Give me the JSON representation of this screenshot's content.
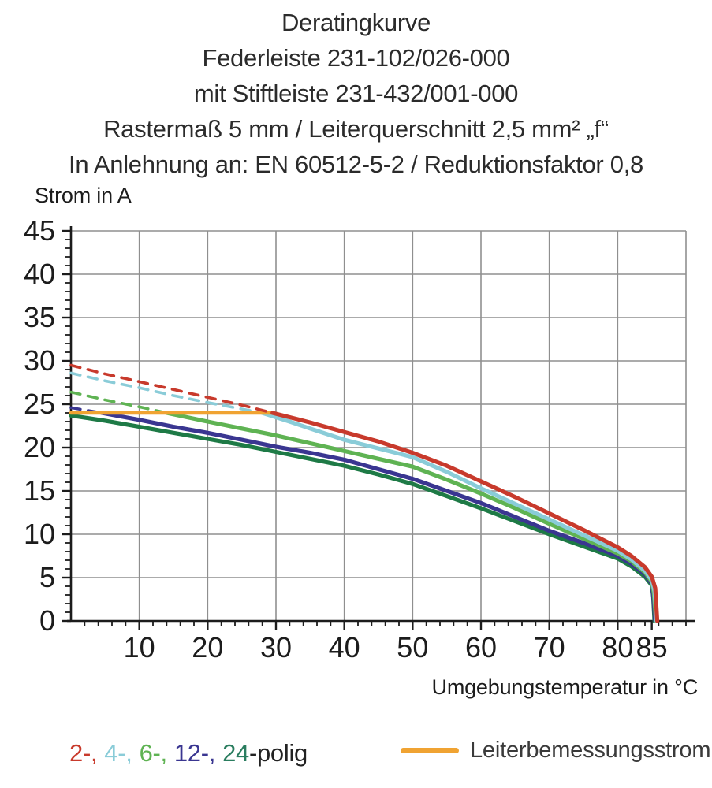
{
  "title": {
    "lines": [
      "Deratingkurve",
      "Federleiste 231-102/026-000",
      "mit Stiftleiste 231-432/001-000",
      "Rastermaß 5 mm / Leiterquerschnitt 2,5 mm² „f“",
      "In Anlehnung an: EN 60512-5-2 / Reduktionsfaktor 0,8"
    ]
  },
  "chart_data": {
    "type": "line",
    "title": "Deratingkurve",
    "xlabel": "Umgebungstemperatur in °C",
    "ylabel": "Strom in A",
    "xlim": [
      0,
      90
    ],
    "ylim": [
      0,
      45
    ],
    "x_major_ticks": [
      10,
      20,
      30,
      40,
      50,
      60,
      70,
      80,
      85
    ],
    "x_minor_tick_step": 2,
    "y_major_ticks": [
      0,
      5,
      10,
      15,
      20,
      25,
      30,
      35,
      40,
      45
    ],
    "y_minor_tick_step": 1,
    "x_gridlines": [
      10,
      20,
      30,
      40,
      50,
      60,
      70,
      80,
      90
    ],
    "y_gridlines": [
      5,
      10,
      15,
      20,
      25,
      30,
      35,
      40,
      45
    ],
    "grid": true,
    "grid_color": "#8f8f8f",
    "axis_color": "#1c1c1c",
    "legend_position": "bottom",
    "dashed_meaning": "current above rated conductor current (dashed portion of pole curves)",
    "series": [
      {
        "name": "24-polig",
        "role": "pole",
        "color": "#1e7a46",
        "dash_until_T": null,
        "points": [
          [
            0,
            23.7
          ],
          [
            5,
            23.1
          ],
          [
            10,
            22.4
          ],
          [
            15,
            21.7
          ],
          [
            20,
            21.0
          ],
          [
            25,
            20.3
          ],
          [
            30,
            19.5
          ],
          [
            35,
            18.7
          ],
          [
            40,
            17.9
          ],
          [
            45,
            16.9
          ],
          [
            50,
            15.8
          ],
          [
            55,
            14.4
          ],
          [
            60,
            13.0
          ],
          [
            65,
            11.5
          ],
          [
            70,
            10.0
          ],
          [
            75,
            8.6
          ],
          [
            80,
            7.2
          ],
          [
            82,
            6.3
          ],
          [
            84,
            5.1
          ],
          [
            85,
            4.1
          ],
          [
            85.2,
            2.8
          ],
          [
            85.4,
            0
          ]
        ]
      },
      {
        "name": "12-polig",
        "role": "pole",
        "color": "#3a3691",
        "dash_until_T": 4.5,
        "points": [
          [
            0,
            24.6
          ],
          [
            4.5,
            24.0
          ],
          [
            10,
            23.2
          ],
          [
            15,
            22.4
          ],
          [
            20,
            21.7
          ],
          [
            25,
            20.9
          ],
          [
            30,
            20.1
          ],
          [
            35,
            19.4
          ],
          [
            40,
            18.6
          ],
          [
            45,
            17.5
          ],
          [
            50,
            16.4
          ],
          [
            55,
            15.0
          ],
          [
            60,
            13.6
          ],
          [
            65,
            12.0
          ],
          [
            70,
            10.4
          ],
          [
            75,
            9.0
          ],
          [
            80,
            7.5
          ],
          [
            82,
            6.6
          ],
          [
            84,
            5.4
          ],
          [
            85,
            4.3
          ],
          [
            85.2,
            3.0
          ],
          [
            85.5,
            0
          ]
        ]
      },
      {
        "name": "6-polig",
        "role": "pole",
        "color": "#5fb353",
        "dash_until_T": 14,
        "points": [
          [
            0,
            26.4
          ],
          [
            5,
            25.5
          ],
          [
            10,
            24.7
          ],
          [
            14,
            24.0
          ],
          [
            20,
            23.0
          ],
          [
            25,
            22.2
          ],
          [
            30,
            21.4
          ],
          [
            35,
            20.5
          ],
          [
            40,
            19.6
          ],
          [
            45,
            18.7
          ],
          [
            50,
            17.8
          ],
          [
            55,
            16.3
          ],
          [
            60,
            14.7
          ],
          [
            65,
            13.0
          ],
          [
            70,
            11.2
          ],
          [
            75,
            9.5
          ],
          [
            80,
            7.8
          ],
          [
            82,
            6.9
          ],
          [
            84,
            5.6
          ],
          [
            85,
            4.5
          ],
          [
            85.3,
            3.2
          ],
          [
            85.6,
            0
          ]
        ]
      },
      {
        "name": "4-polig",
        "role": "pole",
        "color": "#8accd8",
        "dash_until_T": 28,
        "points": [
          [
            0,
            28.6
          ],
          [
            5,
            27.7
          ],
          [
            10,
            26.9
          ],
          [
            15,
            26.0
          ],
          [
            20,
            25.2
          ],
          [
            24,
            24.6
          ],
          [
            28,
            24.0
          ],
          [
            32,
            23.0
          ],
          [
            35,
            22.2
          ],
          [
            40,
            20.9
          ],
          [
            45,
            19.9
          ],
          [
            50,
            18.9
          ],
          [
            55,
            17.2
          ],
          [
            60,
            15.3
          ],
          [
            65,
            13.5
          ],
          [
            70,
            11.7
          ],
          [
            75,
            9.9
          ],
          [
            80,
            8.1
          ],
          [
            82,
            7.1
          ],
          [
            84,
            5.8
          ],
          [
            85,
            4.7
          ],
          [
            85.4,
            3.4
          ],
          [
            85.7,
            0
          ]
        ]
      },
      {
        "name": "Leiterbemessungsstrom",
        "role": "rated",
        "color": "#f0a332",
        "dash_until_T": null,
        "points": [
          [
            0,
            24
          ],
          [
            29.5,
            24
          ]
        ]
      },
      {
        "name": "2-polig",
        "role": "pole",
        "color": "#c83a2c",
        "dash_until_T": 29.5,
        "points": [
          [
            0,
            29.5
          ],
          [
            5,
            28.5
          ],
          [
            10,
            27.6
          ],
          [
            15,
            26.7
          ],
          [
            20,
            25.8
          ],
          [
            25,
            24.9
          ],
          [
            29.5,
            24.0
          ],
          [
            35,
            22.9
          ],
          [
            40,
            21.8
          ],
          [
            45,
            20.7
          ],
          [
            50,
            19.4
          ],
          [
            55,
            17.9
          ],
          [
            60,
            16.1
          ],
          [
            65,
            14.3
          ],
          [
            70,
            12.4
          ],
          [
            75,
            10.5
          ],
          [
            80,
            8.5
          ],
          [
            82,
            7.5
          ],
          [
            84,
            6.2
          ],
          [
            85,
            5.1
          ],
          [
            85.5,
            3.8
          ],
          [
            85.8,
            0
          ]
        ]
      }
    ]
  },
  "legend": {
    "poles": [
      {
        "text": "2-,",
        "color": "#c83a2c"
      },
      {
        "text": "4-,",
        "color": "#8accd8"
      },
      {
        "text": "6-,",
        "color": "#5fb353"
      },
      {
        "text": "12-,",
        "color": "#3a3691"
      },
      {
        "text": "24",
        "color": "#2a7d5f"
      }
    ],
    "suffix": "-polig",
    "rated": {
      "label": "Leiterbemessungsstrom",
      "color": "#f0a332"
    }
  }
}
